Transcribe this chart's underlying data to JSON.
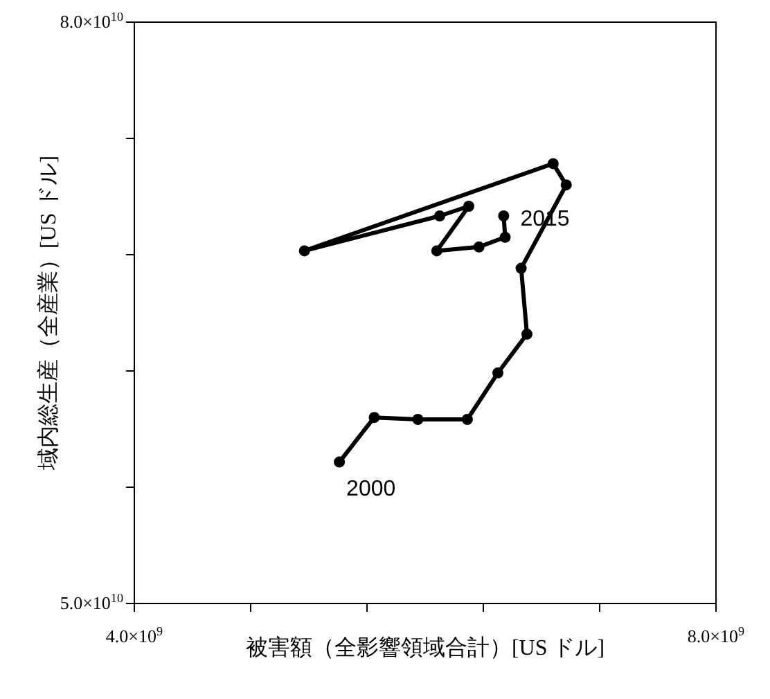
{
  "chart_data": {
    "type": "line",
    "marker": "circle",
    "line_style": "solid",
    "color": "#000000",
    "x": [
      5410000000.0,
      5650000000.0,
      5950000000.0,
      6290000000.0,
      6500000000.0,
      6700000000.0,
      6660000000.0,
      6970000000.0,
      6880000000.0,
      5170000000.0,
      6100000000.0,
      6300000000.0,
      6080000000.0,
      6370000000.0,
      6550000000.0,
      6540000000.0
    ],
    "values": [
      57300000000.0,
      59600000000.0,
      59500000000.0,
      59500000000.0,
      61900000000.0,
      63900000000.0,
      67300000000.0,
      71600000000.0,
      72700000000.0,
      68200000000.0,
      70000000000.0,
      70500000000.0,
      68200000000.0,
      68400000000.0,
      68900000000.0,
      70000000000.0
    ],
    "xlim": [
      4000000000.0,
      8000000000.0
    ],
    "ylim": [
      50000000000.0,
      80000000000.0
    ],
    "xticks": [
      {
        "value": 4000000000.0,
        "label": "4.0×10$^{9}$"
      },
      {
        "value": 4800000000.0,
        "label": null
      },
      {
        "value": 5600000000.0,
        "label": null
      },
      {
        "value": 6400000000.0,
        "label": null
      },
      {
        "value": 7200000000.0,
        "label": null
      },
      {
        "value": 8000000000.0,
        "label": "8.0×10$^{9}$"
      }
    ],
    "yticks": [
      {
        "value": 50000000000.0,
        "label": "5.0×10$^{10}$"
      },
      {
        "value": 56000000000.0,
        "label": null
      },
      {
        "value": 62000000000.0,
        "label": null
      },
      {
        "value": 68000000000.0,
        "label": null
      },
      {
        "value": 74000000000.0,
        "label": null
      },
      {
        "value": 80000000000.0,
        "label": "8.0×10$^{10}$"
      }
    ],
    "xlabel": "被害額（全影響領域合計）[US ドル]",
    "ylabel": "域内総生産（全産業）[US ドル]",
    "annotations": [
      {
        "text": "2000",
        "x": 5410000000.0,
        "y": 57300000000.0
      },
      {
        "text": "2015",
        "x": 6540000000.0,
        "y": 70000000000.0
      }
    ]
  }
}
